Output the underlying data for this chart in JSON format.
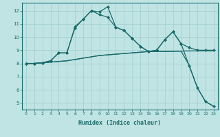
{
  "xlabel": "Humidex (Indice chaleur)",
  "bg_color": "#c0e4e4",
  "line_color": "#1a6b6b",
  "grid_color": "#a0cccc",
  "xlim": [
    -0.5,
    23.5
  ],
  "ylim": [
    4.5,
    12.6
  ],
  "xticks": [
    0,
    1,
    2,
    3,
    4,
    5,
    6,
    7,
    8,
    9,
    10,
    11,
    12,
    13,
    14,
    15,
    16,
    17,
    18,
    19,
    20,
    21,
    22,
    23
  ],
  "yticks": [
    5,
    6,
    7,
    8,
    9,
    10,
    11,
    12
  ],
  "series": [
    {
      "x": [
        0,
        1,
        2,
        3,
        4,
        5,
        6,
        7,
        8,
        9,
        10,
        11,
        12,
        13,
        14,
        15,
        16,
        17,
        18,
        19,
        20,
        21,
        22,
        23
      ],
      "y": [
        8.0,
        8.0,
        8.05,
        8.1,
        8.15,
        8.2,
        8.3,
        8.4,
        8.5,
        8.6,
        8.65,
        8.7,
        8.75,
        8.8,
        8.85,
        8.9,
        8.9,
        8.9,
        8.92,
        8.93,
        8.95,
        8.95,
        8.95,
        8.95
      ],
      "marker": null,
      "linewidth": 0.9
    },
    {
      "x": [
        0,
        1,
        2,
        3,
        4,
        5,
        6,
        7,
        8,
        9,
        10,
        11,
        12,
        13,
        14,
        15,
        16,
        17,
        18,
        19,
        20,
        21,
        22,
        23
      ],
      "y": [
        8.0,
        8.0,
        8.05,
        8.1,
        8.15,
        8.2,
        8.3,
        8.4,
        8.5,
        8.6,
        8.65,
        8.7,
        8.75,
        8.8,
        8.85,
        8.9,
        8.9,
        8.9,
        8.92,
        8.93,
        7.85,
        6.15,
        5.1,
        4.75
      ],
      "marker": null,
      "linewidth": 0.9
    },
    {
      "x": [
        0,
        1,
        2,
        3,
        4,
        5,
        6,
        7,
        8,
        9,
        10,
        11,
        12,
        13,
        14,
        15,
        16,
        17,
        18,
        19,
        20,
        21,
        22,
        23
      ],
      "y": [
        8.0,
        8.0,
        8.05,
        8.2,
        8.8,
        8.8,
        10.7,
        11.35,
        12.0,
        11.7,
        11.5,
        10.75,
        10.5,
        9.9,
        9.3,
        8.9,
        9.0,
        9.8,
        10.4,
        9.5,
        9.2,
        9.0,
        9.0,
        9.0
      ],
      "marker": "D",
      "markersize": 2.0,
      "linewidth": 0.9
    },
    {
      "x": [
        0,
        1,
        2,
        3,
        4,
        5,
        6,
        7,
        8,
        9,
        10,
        11,
        12,
        13,
        14,
        15,
        16,
        17,
        18,
        19,
        20,
        21,
        22,
        23
      ],
      "y": [
        8.0,
        8.0,
        8.05,
        8.2,
        8.8,
        8.8,
        10.8,
        11.35,
        12.0,
        11.9,
        12.3,
        10.75,
        10.5,
        9.9,
        9.3,
        8.9,
        9.0,
        9.8,
        10.4,
        9.5,
        7.8,
        6.15,
        5.1,
        4.75
      ],
      "marker": "D",
      "markersize": 2.0,
      "linewidth": 0.9
    }
  ]
}
